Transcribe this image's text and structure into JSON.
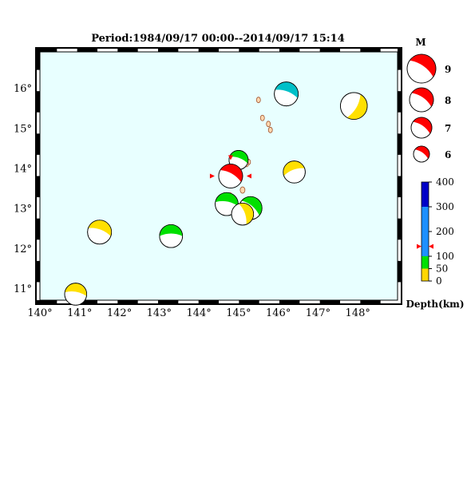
{
  "title": "Period:1984/09/17 00:00--2014/09/17 15:14",
  "map": {
    "ocean_color": "#e8ffff",
    "lon_range": [
      140,
      149
    ],
    "lat_range": [
      10.7,
      16.9
    ],
    "lon_ticks": [
      "140",
      "141",
      "142",
      "143",
      "144",
      "145",
      "146",
      "147",
      "148"
    ],
    "lat_ticks": [
      "11",
      "12",
      "13",
      "14",
      "15",
      "16"
    ],
    "degree_symbol": "°"
  },
  "events": [
    {
      "lon": 145.0,
      "lat": 14.2,
      "mag": 6.0,
      "depth_class": "shallow",
      "color": "#00e000",
      "selected": false
    },
    {
      "lon": 144.8,
      "lat": 13.8,
      "mag": 7.0,
      "depth_class": "intermediate",
      "color": "#ff0000",
      "selected": true
    },
    {
      "lon": 144.7,
      "lat": 13.1,
      "mag": 6.4,
      "depth_class": "shallow",
      "color": "#00e000",
      "selected": false
    },
    {
      "lon": 145.3,
      "lat": 13.0,
      "mag": 6.4,
      "depth_class": "shallow",
      "color": "#00e000",
      "selected": false
    },
    {
      "lon": 145.1,
      "lat": 12.85,
      "mag": 6.3,
      "depth_class": "very-shallow",
      "color": "#ffe000",
      "selected": false
    },
    {
      "lon": 146.2,
      "lat": 15.85,
      "mag": 6.5,
      "depth_class": "mid",
      "color": "#00c0c8",
      "selected": false
    },
    {
      "lon": 147.9,
      "lat": 15.55,
      "mag": 6.8,
      "depth_class": "very-shallow",
      "color": "#ffe000",
      "selected": false
    },
    {
      "lon": 146.4,
      "lat": 13.9,
      "mag": 6.3,
      "depth_class": "very-shallow",
      "color": "#ffe000",
      "selected": false
    },
    {
      "lon": 141.5,
      "lat": 12.4,
      "mag": 6.5,
      "depth_class": "very-shallow",
      "color": "#ffe000",
      "selected": false
    },
    {
      "lon": 143.3,
      "lat": 12.3,
      "mag": 6.4,
      "depth_class": "shallow",
      "color": "#00e000",
      "selected": false
    },
    {
      "lon": 140.9,
      "lat": 10.85,
      "mag": 6.3,
      "depth_class": "very-shallow",
      "color": "#ffe000",
      "selected": false
    }
  ],
  "magnitude_legend": {
    "title": "M",
    "items": [
      "9",
      "8",
      "7",
      "6"
    ],
    "color": "#ff0000"
  },
  "depth_legend": {
    "label": "Depth(km)",
    "ticks": [
      "400",
      "300",
      "200",
      "100",
      "50",
      "0"
    ],
    "colors": {
      "0-50": "#ffd700",
      "50-100": "#00e000",
      "100-300": "#1e90ff",
      "300-400": "#0000c8"
    },
    "marker_depth": 140
  }
}
